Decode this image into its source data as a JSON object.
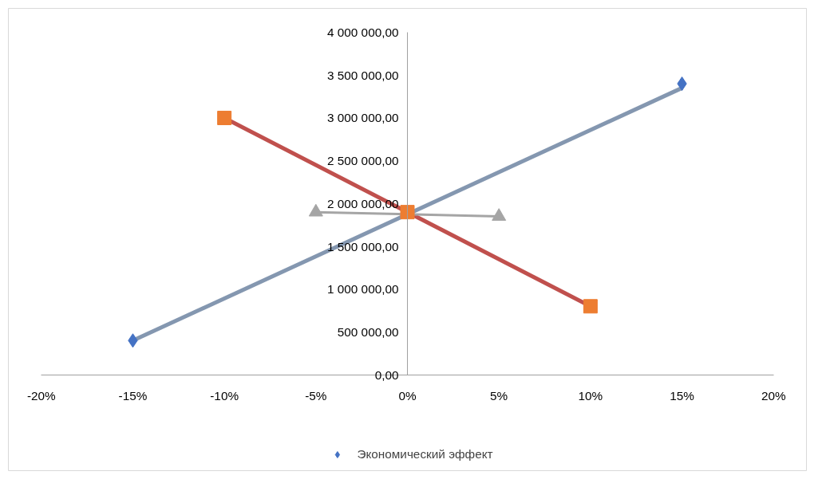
{
  "chart_data": {
    "type": "scatter",
    "xlim": [
      -0.2,
      0.2
    ],
    "xticks": [
      {
        "value": -0.2,
        "label": "-20%"
      },
      {
        "value": -0.15,
        "label": "-15%"
      },
      {
        "value": -0.1,
        "label": "-10%"
      },
      {
        "value": -0.05,
        "label": "-5%"
      },
      {
        "value": 0,
        "label": "0%"
      },
      {
        "value": 0.05,
        "label": "5%"
      },
      {
        "value": 0.1,
        "label": "10%"
      },
      {
        "value": 0.15,
        "label": "15%"
      },
      {
        "value": 0.2,
        "label": "20%"
      }
    ],
    "ylim": [
      0,
      4000000
    ],
    "yticks": [
      {
        "value": 0,
        "label": "0,00"
      },
      {
        "value": 500000,
        "label": "500 000,00"
      },
      {
        "value": 1000000,
        "label": "1 000 000,00"
      },
      {
        "value": 1500000,
        "label": "1 500 000,00"
      },
      {
        "value": 2000000,
        "label": "2 000 000,00"
      },
      {
        "value": 2500000,
        "label": "2 500 000,00"
      },
      {
        "value": 3000000,
        "label": "3 000 000,00"
      },
      {
        "value": 3500000,
        "label": "3 500 000,00"
      },
      {
        "value": 4000000,
        "label": "4 000 000,00"
      }
    ],
    "grid": false,
    "legend": "bottom",
    "series": [
      {
        "type": "line",
        "color": "#8497b0",
        "x": [
          -0.15,
          0.15
        ],
        "values": [
          400000,
          3350000
        ],
        "marker": "none"
      },
      {
        "type": "line",
        "color": "#c0504d",
        "x": [
          -0.1,
          0.1
        ],
        "values": [
          3000000,
          800000
        ],
        "marker": "none"
      },
      {
        "type": "line",
        "color": "#a5a5a5",
        "x": [
          -0.05,
          0.05
        ],
        "values": [
          1900000,
          1850000
        ],
        "marker": "triangle"
      },
      {
        "color": "#ed7d31",
        "x": [
          -0.1,
          0,
          0.1
        ],
        "values": [
          3000000,
          1900000,
          800000
        ],
        "marker": "square"
      },
      {
        "name": "Экономический эффект",
        "color": "#4472c4",
        "x": [
          -0.15,
          0.15
        ],
        "values": [
          400000,
          3400000
        ],
        "marker": "diamond"
      }
    ]
  }
}
